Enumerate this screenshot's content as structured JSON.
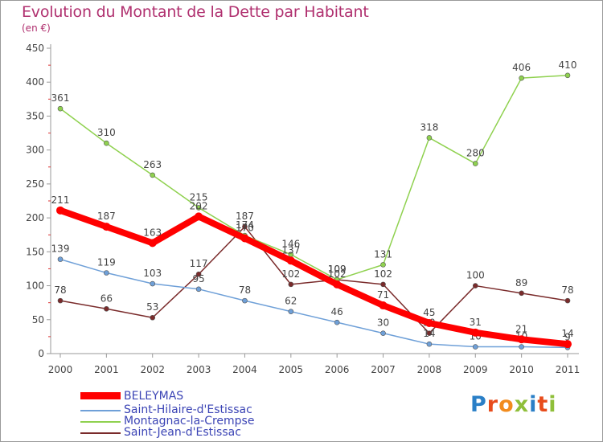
{
  "title": "Evolution du Montant de la Dette par Habitant",
  "unit": "(en €)",
  "logo": {
    "text": "Proxiti",
    "letter_colors": [
      "#2a7fc7",
      "#e84c1c",
      "#f28c1e",
      "#8fbf3a",
      "#2a7fc7",
      "#e84c1c",
      "#8fbf3a"
    ]
  },
  "chart_data": {
    "type": "line",
    "x": [
      "2000",
      "2001",
      "2002",
      "2003",
      "2004",
      "2005",
      "2006",
      "2007",
      "2008",
      "2009",
      "2010",
      "2011"
    ],
    "ylim": [
      0,
      450
    ],
    "yticks": [
      0,
      50,
      100,
      150,
      200,
      250,
      300,
      350,
      400,
      450
    ],
    "grid": false,
    "series": [
      {
        "name": "Saint-Jean-d'Estissac",
        "color": "#7a2b2b",
        "values": [
          78,
          66,
          53,
          117,
          187,
          102,
          109,
          102,
          30,
          100,
          89,
          78
        ]
      },
      {
        "name": "Montagnac-la-Crempse",
        "color": "#8fd14f",
        "values": [
          361,
          310,
          263,
          215,
          174,
          146,
          109,
          131,
          318,
          280,
          406,
          410
        ]
      },
      {
        "name": "Saint-Hilaire-d'Estissac",
        "color": "#6fa0d8",
        "values": [
          139,
          119,
          103,
          95,
          78,
          62,
          46,
          30,
          14,
          10,
          10,
          9
        ]
      },
      {
        "name": "BELEYMAS",
        "color": "#ff0000",
        "values": [
          211,
          187,
          163,
          202,
          170,
          137,
          102,
          71,
          45,
          31,
          21,
          14
        ]
      }
    ]
  },
  "legend": [
    {
      "label": "BELEYMAS",
      "color": "#ff0000"
    },
    {
      "label": "Saint-Hilaire-d'Estissac",
      "color": "#6fa0d8"
    },
    {
      "label": "Montagnac-la-Crempse",
      "color": "#8fd14f"
    },
    {
      "label": "Saint-Jean-d'Estissac",
      "color": "#7a2b2b"
    }
  ]
}
